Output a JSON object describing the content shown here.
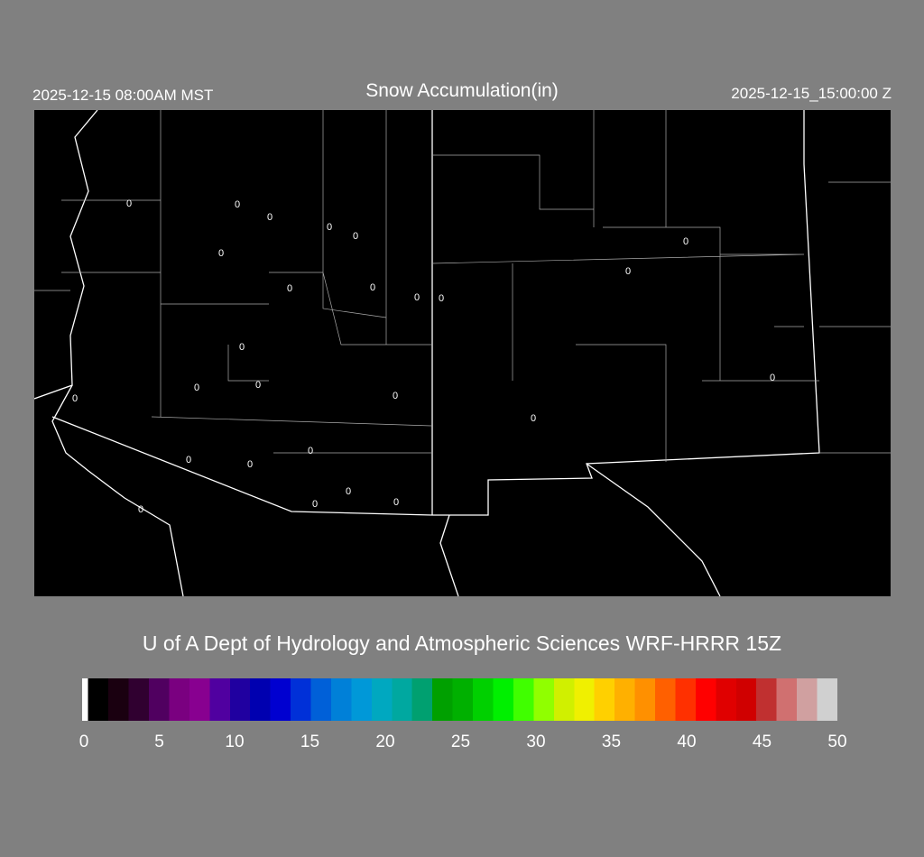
{
  "header": {
    "local_time": "2025-12-15 08:00AM MST",
    "title": "Snow Accumulation(in)",
    "valid_time": "2025-12-15_15:00:00 Z"
  },
  "map": {
    "region": "Arizona / New Mexico",
    "contour_label": "0",
    "background": "#000000",
    "line_color": "#ffffff"
  },
  "credit": "U of A Dept of Hydrology and Atmospheric Sciences WRF-HRRR 15Z",
  "colorbar": {
    "min": 0,
    "max": 50,
    "ticks": [
      "0",
      "5",
      "10",
      "15",
      "20",
      "25",
      "30",
      "35",
      "40",
      "45",
      "50"
    ],
    "colors": [
      "#ffffff",
      "#000000",
      "#1a0010",
      "#300030",
      "#500060",
      "#7a0080",
      "#880090",
      "#5000a0",
      "#2000a0",
      "#0000b0",
      "#0000d0",
      "#0030d8",
      "#0060d8",
      "#0080d8",
      "#0098d8",
      "#00a8c0",
      "#00a8a0",
      "#00a070",
      "#00a000",
      "#00b000",
      "#00d000",
      "#00f000",
      "#40ff00",
      "#90ff00",
      "#d0f000",
      "#f0f000",
      "#ffd000",
      "#ffb000",
      "#ff9000",
      "#ff6000",
      "#ff3000",
      "#ff0000",
      "#e00000",
      "#d00000",
      "#c03030",
      "#d07070",
      "#d0a0a0",
      "#d0d0d0"
    ]
  }
}
